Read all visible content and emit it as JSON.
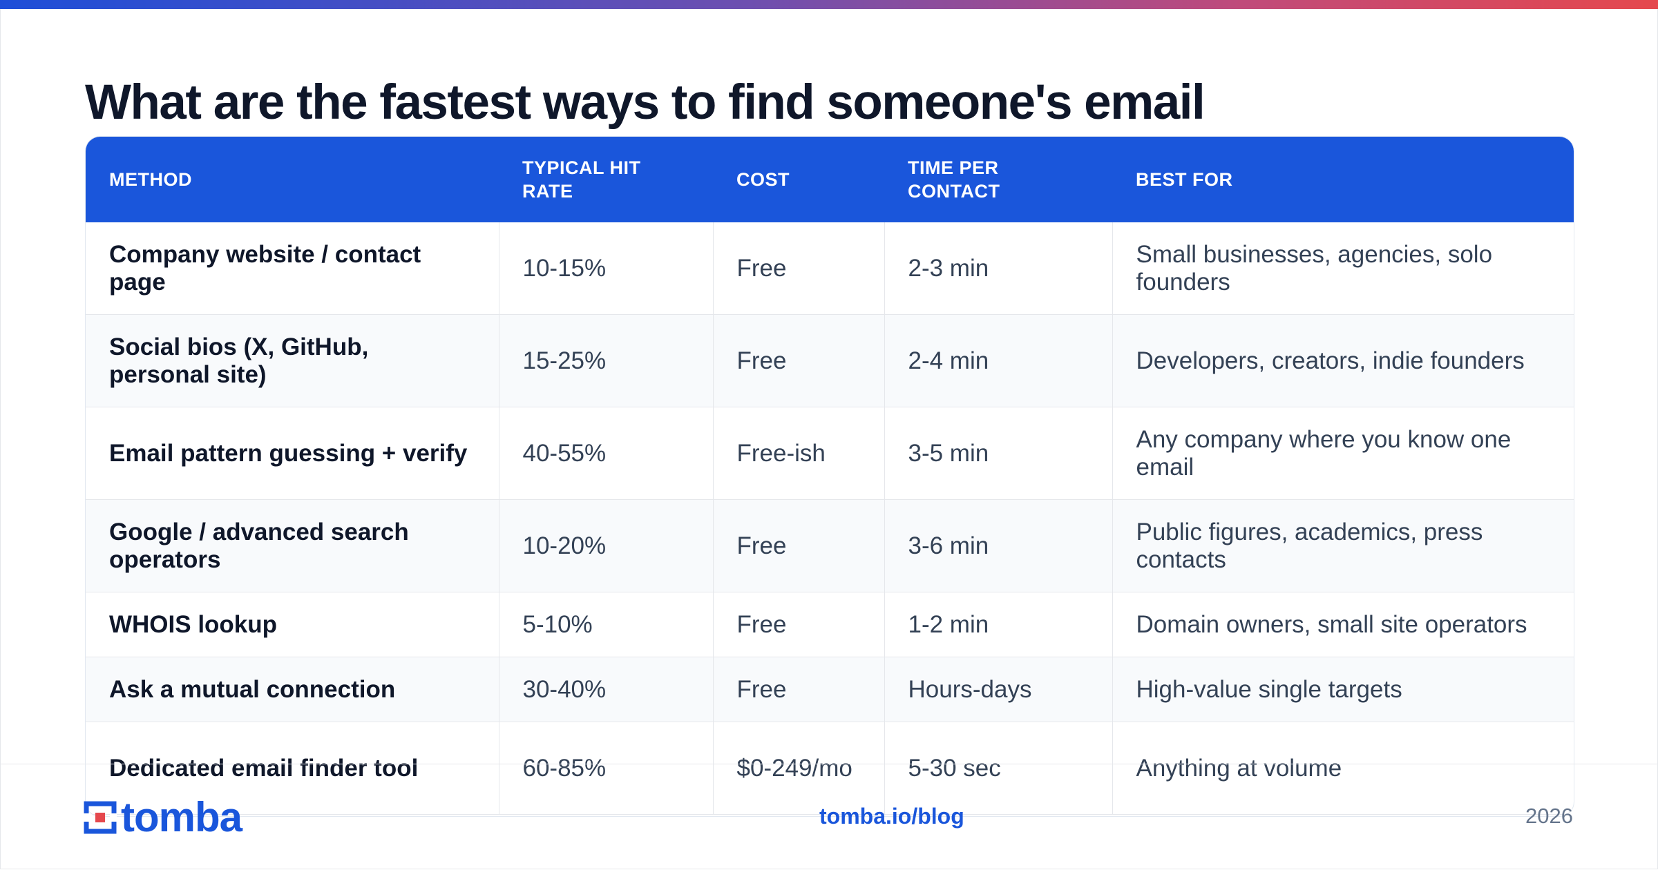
{
  "title": "What are the fastest ways to find someone's email",
  "table": {
    "headers": [
      "METHOD",
      "TYPICAL HIT RATE",
      "COST",
      "TIME PER CONTACT",
      "BEST FOR"
    ],
    "rows": [
      {
        "method": "Company website / contact page",
        "hit_rate": "10-15%",
        "cost": "Free",
        "time": "2-3 min",
        "best_for": "Small businesses, agencies, solo founders"
      },
      {
        "method": "Social bios (X, GitHub, personal site)",
        "hit_rate": "15-25%",
        "cost": "Free",
        "time": "2-4 min",
        "best_for": "Developers, creators, indie founders"
      },
      {
        "method": "Email pattern guessing + verify",
        "hit_rate": "40-55%",
        "cost": "Free-ish",
        "time": "3-5 min",
        "best_for": "Any company where you know one email"
      },
      {
        "method": "Google / advanced search operators",
        "hit_rate": "10-20%",
        "cost": "Free",
        "time": "3-6 min",
        "best_for": "Public figures, academics, press contacts"
      },
      {
        "method": "WHOIS lookup",
        "hit_rate": "5-10%",
        "cost": "Free",
        "time": "1-2 min",
        "best_for": "Domain owners, small site operators"
      },
      {
        "method": "Ask a mutual connection",
        "hit_rate": "30-40%",
        "cost": "Free",
        "time": "Hours-days",
        "best_for": "High-value single targets"
      },
      {
        "method": "Dedicated email finder tool",
        "hit_rate": "60-85%",
        "cost": "$0-249/mo",
        "time": "5-30 sec",
        "best_for": "Anything at volume"
      }
    ]
  },
  "footer": {
    "logo_text": "tomba",
    "link": "tomba.io/blog",
    "year": "2026"
  },
  "colors": {
    "accent": "#1a56db",
    "gradient": [
      "#1d4ed8",
      "#6d4fb0",
      "#c04a7a",
      "#e5484d"
    ]
  },
  "icons": {
    "logo": "tomba-logo-icon"
  }
}
